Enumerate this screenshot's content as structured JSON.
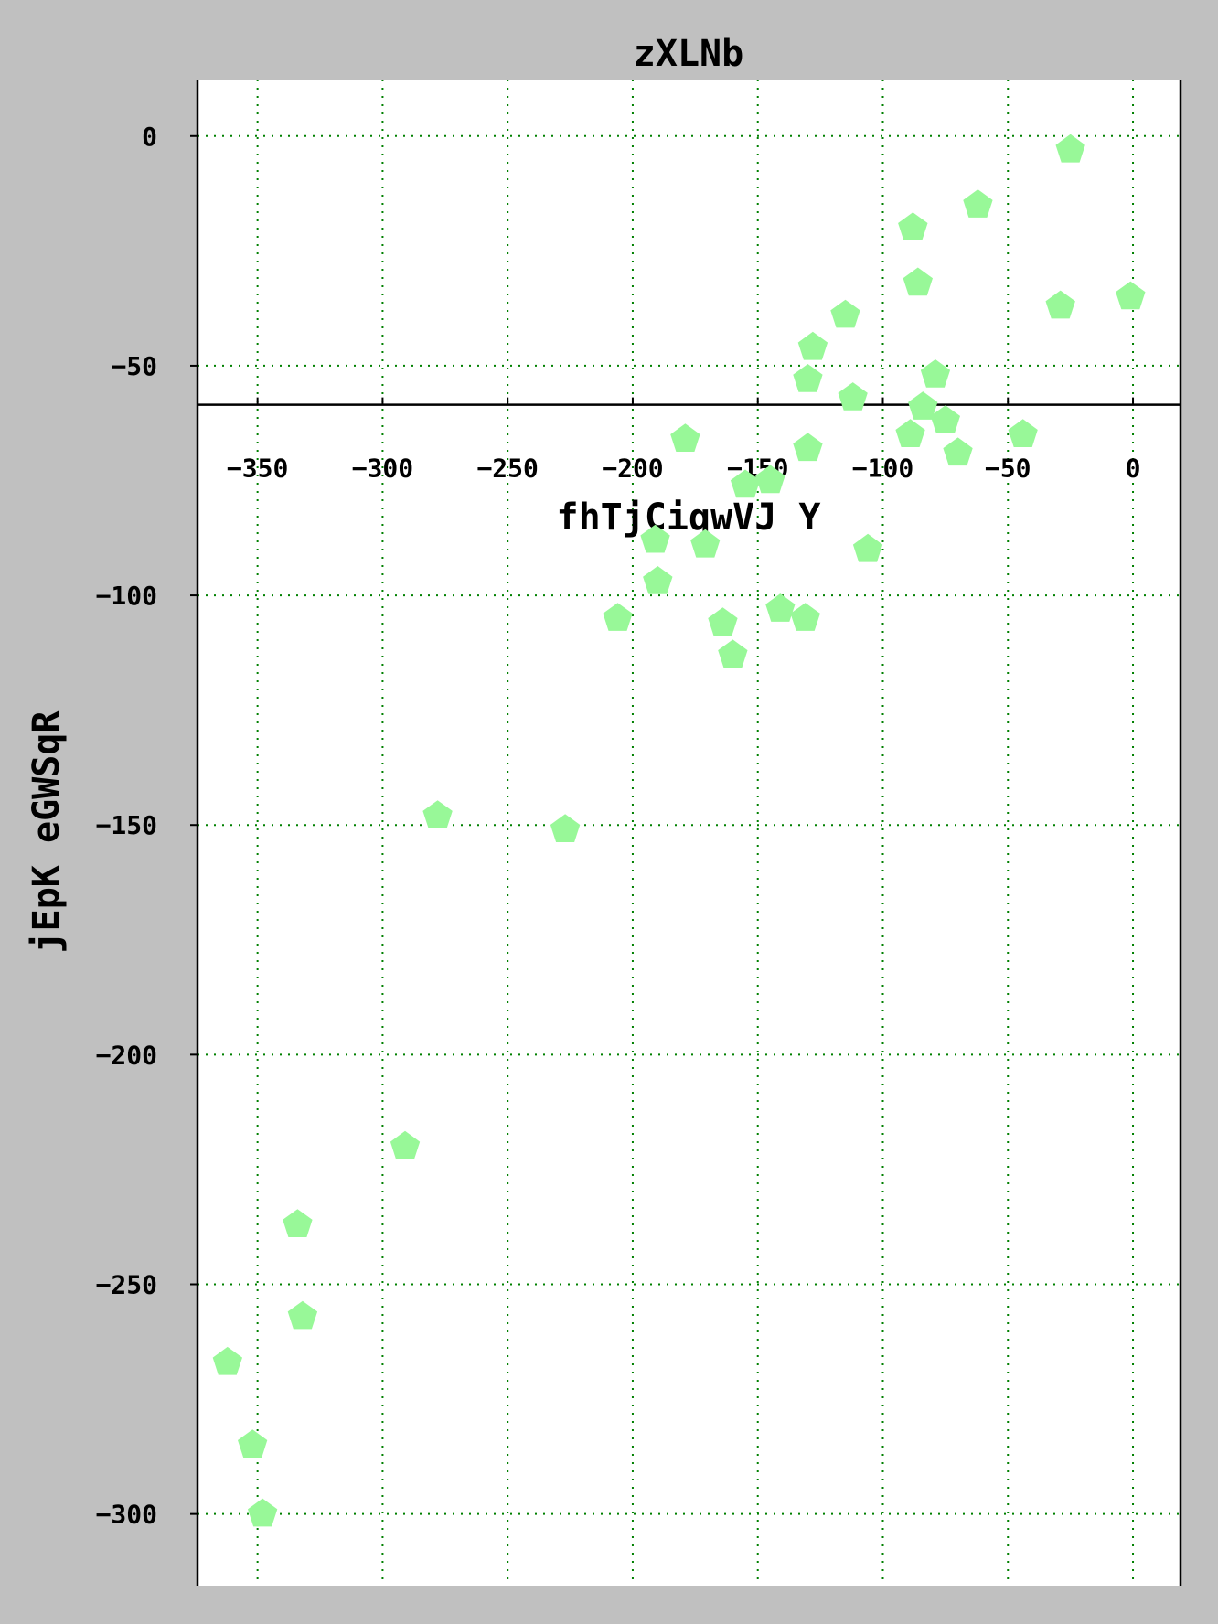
{
  "chart_data": {
    "type": "scatter",
    "title": "zXLNb",
    "xlabel": "fhTjCiqwVJ Y",
    "ylabel": "jEpK eGWSqR",
    "xlim": [
      -374,
      19
    ],
    "ylim": [
      -315.6,
      12.3
    ],
    "xticks": [
      -350,
      -300,
      -250,
      -200,
      -150,
      -100,
      -50,
      0
    ],
    "xtick_labels": [
      "−350",
      "−300",
      "−250",
      "−200",
      "−150",
      "−100",
      "−50",
      "0"
    ],
    "yticks": [
      0,
      -50,
      -100,
      -150,
      -200,
      -250,
      -300
    ],
    "ytick_labels": [
      "0",
      "−50",
      "−100",
      "−150",
      "−200",
      "−250",
      "−300"
    ],
    "x_axis_line_at_y": -58.5,
    "grid": true,
    "grid_color": "#008000",
    "marker": "pentagon",
    "marker_color": "#98f898",
    "series": [
      {
        "points": [
          [
            -25,
            -3
          ],
          [
            -62,
            -15
          ],
          [
            -88,
            -20
          ],
          [
            -86,
            -32
          ],
          [
            -29,
            -37
          ],
          [
            -1,
            -35
          ],
          [
            -115,
            -39
          ],
          [
            -128,
            -46
          ],
          [
            -130,
            -53
          ],
          [
            -79,
            -52
          ],
          [
            -112,
            -57
          ],
          [
            -84,
            -59
          ],
          [
            -75,
            -62
          ],
          [
            -89,
            -65
          ],
          [
            -44,
            -65
          ],
          [
            -179,
            -66
          ],
          [
            -130,
            -68
          ],
          [
            -70,
            -69
          ],
          [
            -155,
            -76
          ],
          [
            -145,
            -75
          ],
          [
            -191,
            -88
          ],
          [
            -171,
            -89
          ],
          [
            -106,
            -90
          ],
          [
            -190,
            -97
          ],
          [
            -206,
            -105
          ],
          [
            -164,
            -106
          ],
          [
            -141,
            -103
          ],
          [
            -131,
            -105
          ],
          [
            -160,
            -113
          ],
          [
            -278,
            -148
          ],
          [
            -227,
            -151
          ],
          [
            -291,
            -220
          ],
          [
            -334,
            -237
          ],
          [
            -332,
            -257
          ],
          [
            -362,
            -267
          ],
          [
            -352,
            -285
          ],
          [
            -348,
            -300
          ]
        ]
      }
    ]
  }
}
